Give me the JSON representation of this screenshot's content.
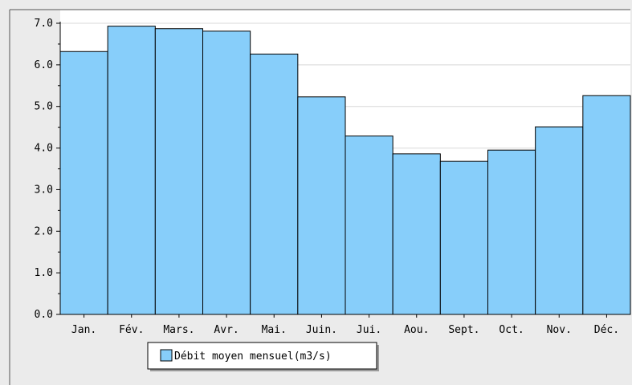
{
  "chart_data": {
    "type": "bar",
    "title": "",
    "xlabel": "",
    "ylabel": "",
    "categories": [
      "Jan.",
      "Fév.",
      "Mars.",
      "Avr.",
      "Mai.",
      "Juin.",
      "Jui.",
      "Aou.",
      "Sept.",
      "Oct.",
      "Nov.",
      "Déc."
    ],
    "series": [
      {
        "name": "Débit moyen mensuel(m3/s)",
        "values": [
          6.32,
          6.93,
          6.87,
          6.81,
          6.26,
          5.23,
          4.29,
          3.86,
          3.68,
          3.95,
          4.51,
          5.26
        ]
      }
    ],
    "ylim": [
      0,
      7
    ],
    "yticks": [
      "0.0",
      "1.0",
      "2.0",
      "3.0",
      "4.0",
      "5.0",
      "6.0",
      "7.0"
    ],
    "grid": true,
    "legend_position": "bottom-left",
    "colors": {
      "bar_fill": "#87cefa",
      "bar_stroke": "#000000",
      "plot_bg": "#ffffff",
      "figure_bg": "#ebebeb",
      "grid": "#d8d8d8"
    }
  }
}
